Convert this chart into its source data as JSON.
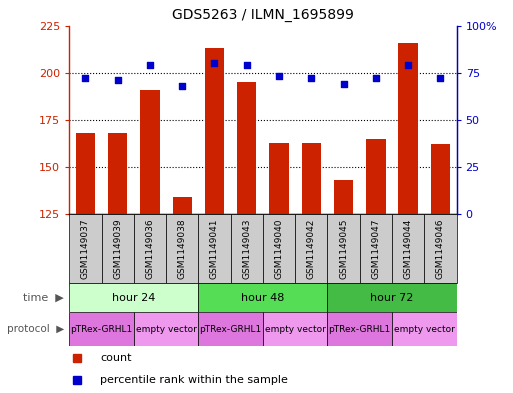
{
  "title": "GDS5263 / ILMN_1695899",
  "samples": [
    "GSM1149037",
    "GSM1149039",
    "GSM1149036",
    "GSM1149038",
    "GSM1149041",
    "GSM1149043",
    "GSM1149040",
    "GSM1149042",
    "GSM1149045",
    "GSM1149047",
    "GSM1149044",
    "GSM1149046"
  ],
  "counts": [
    168,
    168,
    191,
    134,
    213,
    195,
    163,
    163,
    143,
    165,
    216,
    162
  ],
  "percentiles": [
    72,
    71,
    79,
    68,
    80,
    79,
    73,
    72,
    69,
    72,
    79,
    72
  ],
  "ylim_left": [
    125,
    225
  ],
  "ylim_right": [
    0,
    100
  ],
  "yticks_left": [
    125,
    150,
    175,
    200,
    225
  ],
  "yticks_right": [
    0,
    25,
    50,
    75,
    100
  ],
  "bar_color": "#cc2200",
  "scatter_color": "#0000cc",
  "sample_box_color": "#cccccc",
  "time_groups": [
    {
      "label": "hour 24",
      "start": 0,
      "end": 4,
      "color": "#ccffcc"
    },
    {
      "label": "hour 48",
      "start": 4,
      "end": 8,
      "color": "#55dd55"
    },
    {
      "label": "hour 72",
      "start": 8,
      "end": 12,
      "color": "#44bb44"
    }
  ],
  "protocol_groups": [
    {
      "label": "pTRex-GRHL1",
      "start": 0,
      "end": 2,
      "color": "#dd77dd"
    },
    {
      "label": "empty vector",
      "start": 2,
      "end": 4,
      "color": "#ee99ee"
    },
    {
      "label": "pTRex-GRHL1",
      "start": 4,
      "end": 6,
      "color": "#dd77dd"
    },
    {
      "label": "empty vector",
      "start": 6,
      "end": 8,
      "color": "#ee99ee"
    },
    {
      "label": "pTRex-GRHL1",
      "start": 8,
      "end": 10,
      "color": "#dd77dd"
    },
    {
      "label": "empty vector",
      "start": 10,
      "end": 12,
      "color": "#ee99ee"
    }
  ],
  "legend_items": [
    {
      "label": "count",
      "color": "#cc2200"
    },
    {
      "label": "percentile rank within the sample",
      "color": "#0000cc"
    }
  ],
  "gridline_values": [
    150,
    175,
    200
  ],
  "gridline_color": "black",
  "gridline_style": "dotted"
}
